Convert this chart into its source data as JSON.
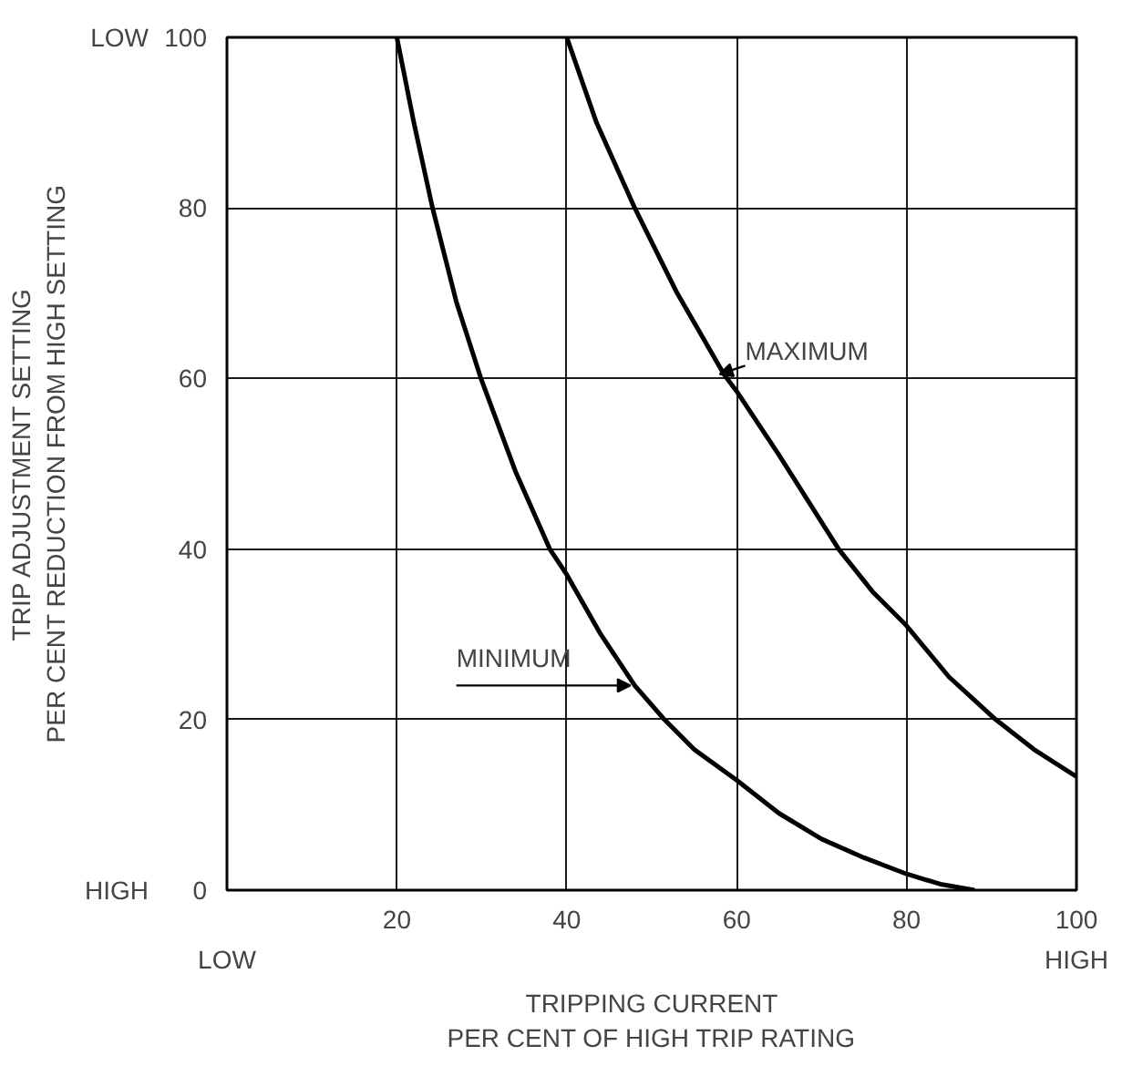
{
  "chart_data": {
    "type": "line",
    "xlabel": "TRIPPING CURRENT\nPER CENT OF HIGH TRIP RATING",
    "ylabel": "TRIP ADJUSTMENT SETTING\nPER CENT REDUCTION FROM HIGH SETTING",
    "xlim": [
      0,
      100
    ],
    "ylim": [
      0,
      100
    ],
    "xticks": [
      20,
      40,
      60,
      80,
      100
    ],
    "yticks": [
      0,
      20,
      40,
      60,
      80,
      100
    ],
    "grid": true,
    "line_style": "solid",
    "marker": "none",
    "series": [
      {
        "color": "#000000",
        "x": [
          20,
          22,
          24.2,
          27,
          29.9,
          34,
          38,
          40,
          44,
          48,
          51.5,
          55,
          60,
          65,
          70,
          75,
          80,
          84,
          88
        ],
        "values": [
          100,
          90,
          80,
          69,
          60,
          49,
          40,
          37,
          30,
          24,
          20,
          16.5,
          12.9,
          9,
          6,
          3.8,
          1.9,
          0.7,
          0
        ]
      },
      {
        "color": "#000000",
        "x": [
          40,
          43.5,
          48,
          53,
          58.5,
          60,
          65,
          72,
          76,
          80,
          85,
          90.5,
          95,
          100
        ],
        "values": [
          100,
          90,
          80,
          70,
          60.5,
          58.5,
          51,
          40,
          35,
          31,
          25,
          20,
          16.5,
          13.3
        ]
      }
    ],
    "annotations": [
      {
        "text": "MAXIMUM",
        "x": 58,
        "y": 60.5
      },
      {
        "text": "MINIMUM",
        "x": 48,
        "y": 24
      },
      "LOW",
      "HIGH",
      "LOW",
      "HIGH"
    ]
  }
}
